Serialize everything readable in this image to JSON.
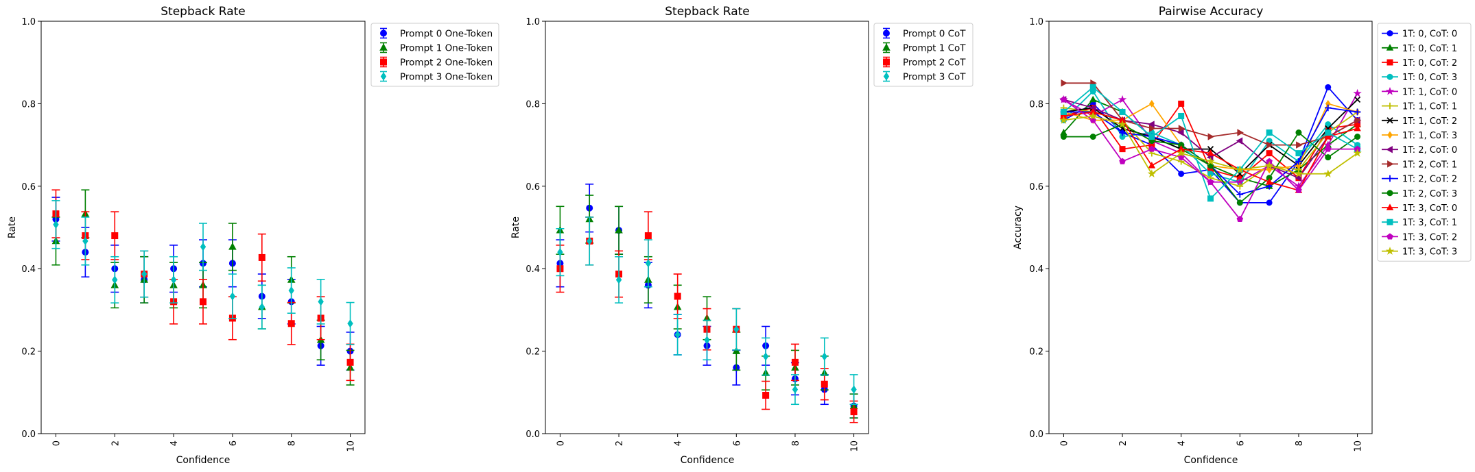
{
  "chart_data": [
    {
      "type": "scatter",
      "title": "Stepback Rate",
      "xlabel": "Confidence",
      "ylabel": "Rate",
      "xlim": [
        -0.5,
        10.5
      ],
      "ylim": [
        0,
        1.0
      ],
      "xticks": [
        "0",
        "2",
        "4",
        "6",
        "8",
        "10"
      ],
      "yticks": [
        "0.0",
        "0.2",
        "0.4",
        "0.6",
        "0.8",
        "1.0"
      ],
      "legend_position": "outside-top-right",
      "series": [
        {
          "name": "Prompt 0 One-Token",
          "color": "#0000ff",
          "marker": "circle",
          "offset": 0.0,
          "values": [
            0.52,
            0.44,
            0.4,
            0.373,
            0.4,
            0.413,
            0.413,
            0.333,
            0.32,
            0.213,
            0.2
          ],
          "errors": [
            0.053,
            0.06,
            0.057,
            0.056,
            0.057,
            0.057,
            0.057,
            0.054,
            0.054,
            0.047,
            0.046
          ]
        },
        {
          "name": "Prompt 1 One-Token",
          "color": "#008000",
          "marker": "triangle",
          "offset": 0.0,
          "values": [
            0.467,
            0.533,
            0.36,
            0.373,
            0.36,
            0.36,
            0.453,
            0.307,
            0.373,
            0.227,
            0.16
          ],
          "errors": [
            0.058,
            0.058,
            0.055,
            0.056,
            0.055,
            0.055,
            0.057,
            0.053,
            0.056,
            0.048,
            0.042
          ]
        },
        {
          "name": "Prompt 2 One-Token",
          "color": "#ff0000",
          "marker": "square",
          "offset": 0.0,
          "values": [
            0.533,
            0.48,
            0.48,
            0.387,
            0.32,
            0.32,
            0.28,
            0.427,
            0.267,
            0.28,
            0.173
          ],
          "errors": [
            0.058,
            0.058,
            0.058,
            0.056,
            0.054,
            0.054,
            0.052,
            0.057,
            0.051,
            0.052,
            0.044
          ]
        },
        {
          "name": "Prompt 3 One-Token",
          "color": "#00bfbf",
          "marker": "diamond",
          "offset": 0.0,
          "values": [
            0.507,
            0.467,
            0.373,
            0.387,
            0.373,
            0.453,
            0.333,
            0.307,
            0.347,
            0.32,
            0.267
          ],
          "errors": [
            0.058,
            0.058,
            0.056,
            0.056,
            0.056,
            0.057,
            0.054,
            0.053,
            0.055,
            0.054,
            0.051
          ]
        }
      ]
    },
    {
      "type": "scatter",
      "title": "Stepback Rate",
      "xlabel": "Confidence",
      "ylabel": "Rate",
      "xlim": [
        -0.5,
        10.5
      ],
      "ylim": [
        0,
        1.0
      ],
      "xticks": [
        "0",
        "2",
        "4",
        "6",
        "8",
        "10"
      ],
      "yticks": [
        "0.0",
        "0.2",
        "0.4",
        "0.6",
        "0.8",
        "1.0"
      ],
      "legend_position": "outside-top-right",
      "series": [
        {
          "name": "Prompt 0 CoT",
          "color": "#0000ff",
          "marker": "circle",
          "offset": 0.0,
          "values": [
            0.413,
            0.547,
            0.493,
            0.36,
            0.24,
            0.213,
            0.16,
            0.213,
            0.133,
            0.107,
            0.067
          ],
          "errors": [
            0.057,
            0.058,
            0.058,
            0.055,
            0.049,
            0.047,
            0.042,
            0.047,
            0.039,
            0.036,
            0.029
          ]
        },
        {
          "name": "Prompt 1 CoT",
          "color": "#008000",
          "marker": "triangle",
          "offset": 0.0,
          "values": [
            0.493,
            0.52,
            0.493,
            0.373,
            0.307,
            0.28,
            0.2,
            0.147,
            0.16,
            0.147,
            0.067
          ],
          "errors": [
            0.058,
            0.058,
            0.058,
            0.056,
            0.053,
            0.052,
            0.046,
            0.041,
            0.042,
            0.041,
            0.029
          ]
        },
        {
          "name": "Prompt 2 CoT",
          "color": "#ff0000",
          "marker": "square",
          "offset": 0.0,
          "values": [
            0.4,
            0.467,
            0.387,
            0.48,
            0.333,
            0.253,
            0.253,
            0.093,
            0.173,
            0.12,
            0.053
          ],
          "errors": [
            0.057,
            0.058,
            0.056,
            0.058,
            0.054,
            0.05,
            0.05,
            0.034,
            0.044,
            0.038,
            0.026
          ]
        },
        {
          "name": "Prompt 3 CoT",
          "color": "#00bfbf",
          "marker": "diamond",
          "offset": 0.0,
          "values": [
            0.44,
            0.467,
            0.373,
            0.413,
            0.24,
            0.227,
            0.253,
            0.187,
            0.107,
            0.187,
            0.107
          ],
          "errors": [
            0.057,
            0.058,
            0.056,
            0.057,
            0.049,
            0.048,
            0.05,
            0.045,
            0.036,
            0.045,
            0.036
          ]
        }
      ]
    },
    {
      "type": "line",
      "title": "Pairwise Accuracy",
      "xlabel": "Confidence",
      "ylabel": "Accuracy",
      "xlim": [
        -0.5,
        10.5
      ],
      "ylim": [
        0,
        1.0
      ],
      "xticks": [
        "0",
        "2",
        "4",
        "6",
        "8",
        "10"
      ],
      "yticks": [
        "0.0",
        "0.2",
        "0.4",
        "0.6",
        "0.8",
        "1.0"
      ],
      "legend_position": "outside-top-right",
      "x": [
        0,
        1,
        2,
        3,
        4,
        5,
        6,
        7,
        8,
        9,
        10
      ],
      "series": [
        {
          "name": "1T: 0, CoT: 0",
          "color": "#0000ff",
          "marker": "circle",
          "values": [
            0.76,
            0.8,
            0.73,
            0.7,
            0.63,
            0.64,
            0.56,
            0.56,
            0.66,
            0.84,
            0.76
          ]
        },
        {
          "name": "1T: 0, CoT: 1",
          "color": "#008000",
          "marker": "triangle",
          "values": [
            0.73,
            0.81,
            0.78,
            0.72,
            0.69,
            0.65,
            0.62,
            0.6,
            0.64,
            0.7,
            0.75
          ]
        },
        {
          "name": "1T: 0, CoT: 2",
          "color": "#ff0000",
          "marker": "square",
          "values": [
            0.77,
            0.79,
            0.69,
            0.7,
            0.8,
            0.64,
            0.62,
            0.68,
            0.62,
            0.74,
            0.75
          ]
        },
        {
          "name": "1T: 0, CoT: 3",
          "color": "#00bfbf",
          "marker": "circle",
          "values": [
            0.76,
            0.83,
            0.72,
            0.73,
            0.7,
            0.63,
            0.61,
            0.71,
            0.66,
            0.75,
            0.7
          ]
        },
        {
          "name": "1T: 1, CoT: 0",
          "color": "#bf00bf",
          "marker": "star",
          "values": [
            0.81,
            0.77,
            0.81,
            0.71,
            0.68,
            0.61,
            0.61,
            0.65,
            0.6,
            0.7,
            0.825
          ]
        },
        {
          "name": "1T: 1, CoT: 1",
          "color": "#bfbf00",
          "marker": "plus",
          "values": [
            0.79,
            0.78,
            0.76,
            0.68,
            0.66,
            0.62,
            0.6,
            0.65,
            0.64,
            0.73,
            0.78
          ]
        },
        {
          "name": "1T: 1, CoT: 2",
          "color": "#000000",
          "marker": "x",
          "values": [
            0.78,
            0.79,
            0.74,
            0.72,
            0.69,
            0.69,
            0.63,
            0.7,
            0.65,
            0.74,
            0.81
          ]
        },
        {
          "name": "1T: 1, CoT: 3",
          "color": "#ffa500",
          "marker": "diamond",
          "values": [
            0.78,
            0.76,
            0.76,
            0.8,
            0.7,
            0.65,
            0.64,
            0.64,
            0.65,
            0.8,
            0.78
          ]
        },
        {
          "name": "1T: 2, CoT: 0",
          "color": "#800080",
          "marker": "triangle-left",
          "values": [
            0.81,
            0.79,
            0.76,
            0.75,
            0.73,
            0.67,
            0.71,
            0.65,
            0.62,
            0.72,
            0.76
          ]
        },
        {
          "name": "1T: 2, CoT: 1",
          "color": "#a52a2a",
          "marker": "triangle-right",
          "values": [
            0.85,
            0.85,
            0.76,
            0.74,
            0.74,
            0.72,
            0.73,
            0.7,
            0.7,
            0.72,
            0.76
          ]
        },
        {
          "name": "1T: 2, CoT: 2",
          "color": "#0000ff",
          "marker": "plus",
          "values": [
            0.78,
            0.78,
            0.73,
            0.72,
            0.7,
            0.65,
            0.58,
            0.6,
            0.66,
            0.79,
            0.78
          ]
        },
        {
          "name": "1T: 2, CoT: 3",
          "color": "#008000",
          "marker": "circle",
          "values": [
            0.72,
            0.72,
            0.75,
            0.71,
            0.7,
            0.65,
            0.56,
            0.62,
            0.73,
            0.67,
            0.72
          ]
        },
        {
          "name": "1T: 3, CoT: 0",
          "color": "#ff0000",
          "marker": "triangle",
          "values": [
            0.77,
            0.78,
            0.76,
            0.65,
            0.69,
            0.68,
            0.64,
            0.61,
            0.59,
            0.72,
            0.74
          ]
        },
        {
          "name": "1T: 3, CoT: 1",
          "color": "#00bfbf",
          "marker": "square",
          "values": [
            0.78,
            0.84,
            0.78,
            0.72,
            0.77,
            0.57,
            0.64,
            0.73,
            0.68,
            0.73,
            0.69
          ]
        },
        {
          "name": "1T: 3, CoT: 2",
          "color": "#bf00bf",
          "marker": "pentagon",
          "values": [
            0.81,
            0.76,
            0.66,
            0.69,
            0.67,
            0.61,
            0.52,
            0.66,
            0.59,
            0.69,
            0.69
          ]
        },
        {
          "name": "1T: 3, CoT: 3",
          "color": "#bfbf00",
          "marker": "star",
          "values": [
            0.76,
            0.77,
            0.75,
            0.63,
            0.68,
            0.66,
            0.64,
            0.65,
            0.63,
            0.63,
            0.68
          ]
        }
      ]
    }
  ]
}
